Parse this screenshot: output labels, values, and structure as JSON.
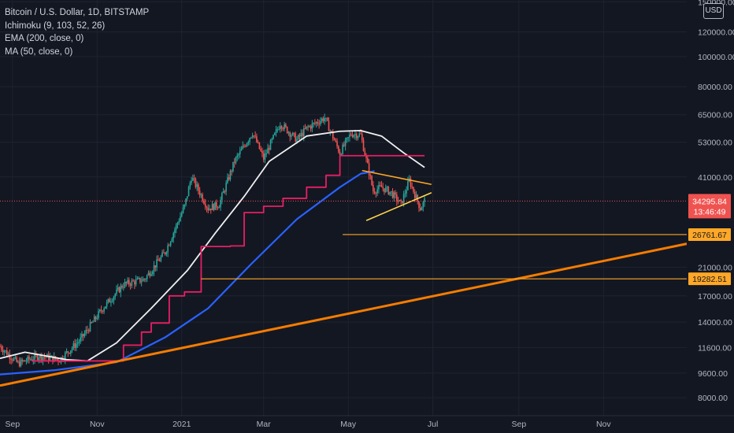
{
  "legend": {
    "title": "Bitcoin / U.S. Dollar, 1D, BITSTAMP",
    "ichimoku": "Ichimoku (9, 103, 52, 26)",
    "ema": "EMA (200, close, 0)",
    "ma": "MA (50, close, 0)"
  },
  "currency_label": "USD",
  "chart_data": {
    "type": "line",
    "scale": "log",
    "ylim": [
      7000,
      152000
    ],
    "xlim": [
      "2020-08-23",
      "2021-12-31"
    ],
    "y_ticks": [
      "8000.00",
      "9600.00",
      "11600.00",
      "14000.00",
      "17000.00",
      "21000.00",
      "41000.00",
      "53000.00",
      "65000.00",
      "80000.00",
      "100000.00",
      "120000.00",
      "150000.00"
    ],
    "y_tick_values": [
      8000,
      9600,
      11600,
      14000,
      17000,
      21000,
      41000,
      53000,
      65000,
      80000,
      100000,
      120000,
      150000
    ],
    "x_ticks": [
      "Sep",
      "Nov",
      "2021",
      "Mar",
      "May",
      "Jul",
      "Sep",
      "Nov"
    ],
    "x_tick_dates": [
      "2020-09-01",
      "2020-11-01",
      "2021-01-01",
      "2021-03-01",
      "2021-05-01",
      "2021-07-01",
      "2021-09-01",
      "2021-11-01"
    ],
    "price_label": {
      "value": "34295.84",
      "countdown": "13:46:49",
      "price": 34295.84
    },
    "levels": [
      {
        "label": "26761.67",
        "price": 26761.67,
        "start": "2021-04-27"
      },
      {
        "label": "19282.51",
        "price": 19282.51,
        "start": "2021-01-15"
      }
    ],
    "series": [
      {
        "name": "Bitcoin / U.S. Dollar",
        "kind": "price",
        "x": [
          "2020-08-23",
          "2020-09-05",
          "2020-09-20",
          "2020-10-05",
          "2020-10-20",
          "2020-11-05",
          "2020-11-20",
          "2020-12-05",
          "2020-12-20",
          "2021-01-03",
          "2021-01-08",
          "2021-01-20",
          "2021-01-28",
          "2021-02-08",
          "2021-02-21",
          "2021-03-01",
          "2021-03-13",
          "2021-03-25",
          "2021-04-01",
          "2021-04-14",
          "2021-04-25",
          "2021-05-03",
          "2021-05-10",
          "2021-05-19",
          "2021-05-25",
          "2021-06-01",
          "2021-06-08",
          "2021-06-14",
          "2021-06-22",
          "2021-06-25"
        ],
        "values": [
          11700,
          10300,
          10900,
          10600,
          12300,
          15500,
          18500,
          19200,
          23500,
          33000,
          41000,
          32500,
          33500,
          46000,
          57000,
          47000,
          61000,
          54000,
          58800,
          63500,
          49000,
          56500,
          56000,
          37000,
          38000,
          36500,
          33500,
          40000,
          32500,
          34300
        ]
      },
      {
        "name": "",
        "kind": "ema200",
        "x": [
          "2020-08-23",
          "2020-10-01",
          "2020-11-15",
          "2020-12-20",
          "2021-01-20",
          "2021-02-20",
          "2021-03-25",
          "2021-04-25",
          "2021-05-10",
          "2021-05-20"
        ],
        "values": [
          9500,
          9800,
          10400,
          12500,
          15500,
          21500,
          30000,
          38000,
          42000,
          42800
        ]
      },
      {
        "name": "",
        "kind": "ma50",
        "x": [
          "2020-08-23",
          "2020-09-10",
          "2020-10-10",
          "2020-10-25",
          "2020-11-15",
          "2020-12-10",
          "2021-01-05",
          "2021-01-25",
          "2021-02-15",
          "2021-03-05",
          "2021-04-01",
          "2021-04-25",
          "2021-05-10",
          "2021-05-25",
          "2021-06-10",
          "2021-06-25"
        ],
        "values": [
          10700,
          11200,
          10600,
          10500,
          12000,
          15500,
          20500,
          27000,
          35500,
          46000,
          55500,
          57500,
          57800,
          55500,
          49000,
          44000
        ]
      },
      {
        "name": "",
        "kind": "ichimoku",
        "x": [
          "2020-09-15",
          "2020-11-01",
          "2020-11-20",
          "2020-12-03",
          "2020-12-10",
          "2020-12-23",
          "2021-01-03",
          "2021-01-15",
          "2021-02-05",
          "2021-02-15",
          "2021-03-01",
          "2021-03-15",
          "2021-04-01",
          "2021-04-15",
          "2021-04-25",
          "2021-05-11",
          "2021-06-25"
        ],
        "values": [
          10500,
          10500,
          11800,
          13000,
          13900,
          17000,
          17500,
          24500,
          24600,
          31500,
          33000,
          35000,
          38000,
          41500,
          48000,
          48000,
          48000
        ]
      },
      {
        "name": "",
        "kind": "trendline",
        "x": [
          "2020-08-23",
          "2021-12-31"
        ],
        "values": [
          8750,
          25000
        ]
      },
      {
        "name": "",
        "kind": "triangle-upper",
        "x": [
          "2021-05-11",
          "2021-06-30"
        ],
        "values": [
          43000,
          38800
        ]
      },
      {
        "name": "",
        "kind": "triangle-lower",
        "x": [
          "2021-05-14",
          "2021-06-30"
        ],
        "values": [
          29700,
          36500
        ]
      }
    ]
  }
}
